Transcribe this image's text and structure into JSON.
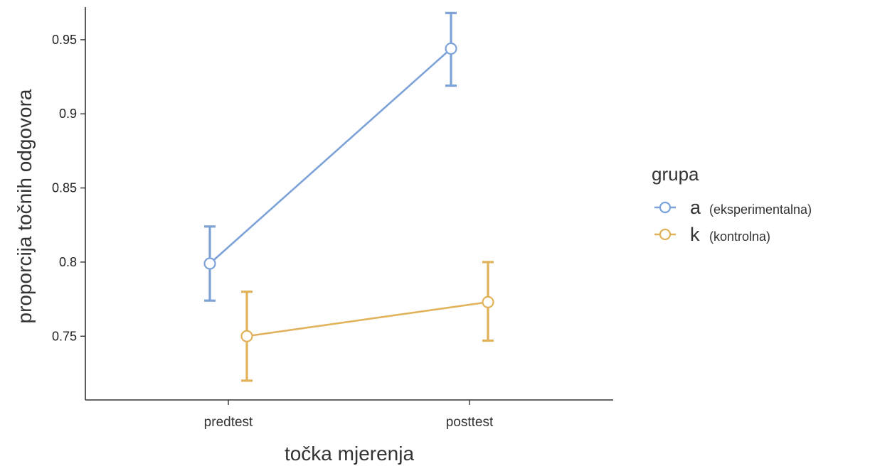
{
  "chart_data": {
    "type": "line",
    "xlabel": "točka mjerenja",
    "ylabel": "proporcija točnih odgovora",
    "categories": [
      "predtest",
      "posttest"
    ],
    "ylim": [
      0.707,
      0.972
    ],
    "yticks": [
      0.75,
      0.8,
      0.85,
      0.9,
      0.95
    ],
    "ytick_labels": [
      "0.75",
      "0.8",
      "0.85",
      "0.9",
      "0.95"
    ],
    "grid": false,
    "legend": {
      "title": "grupa",
      "placement": "right"
    },
    "series": [
      {
        "name": "a",
        "description": "(eksperimentalna)",
        "color": "#7da2d8",
        "values": [
          0.799,
          0.944
        ],
        "error_low": [
          0.774,
          0.919
        ],
        "error_high": [
          0.824,
          0.968
        ]
      },
      {
        "name": "k",
        "description": "(kontrolna)",
        "color": "#e2b25b",
        "values": [
          0.75,
          0.773
        ],
        "error_low": [
          0.72,
          0.747
        ],
        "error_high": [
          0.78,
          0.8
        ]
      }
    ]
  }
}
